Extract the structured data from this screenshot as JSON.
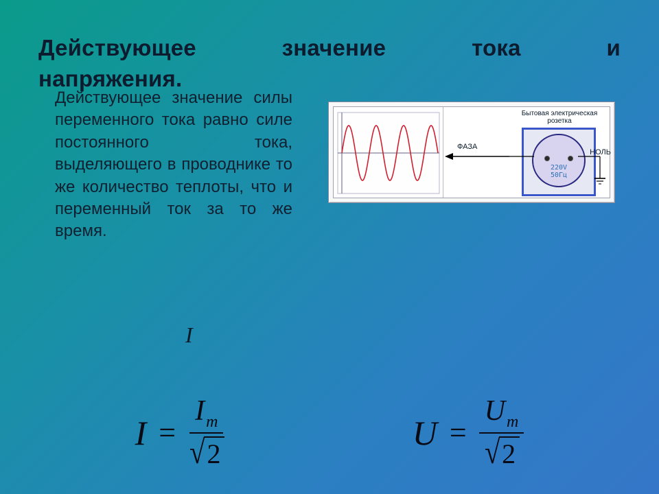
{
  "title_line1_words": [
    "Действующее",
    "значение",
    "тока",
    "и"
  ],
  "title_line2": "напряжения.",
  "definition": "Действующее значение силы переменного тока равно силе постоянного тока, выделяющего в проводнике то же количество теплоты, что и переменный ток за то же время.",
  "diagram": {
    "socket_title": "Бытовая электрическая\nрозетка",
    "phase_label": "ФАЗА",
    "neutral_label": "НОЛЬ",
    "socket_voltage": "220V",
    "socket_freq": "50Гц",
    "wave": {
      "amplitude": 40,
      "periods": 3.5,
      "color": "#d02030",
      "axis_color": "#606080",
      "width": 150,
      "height": 110
    },
    "arrow_color": "#000000",
    "socket_border_color": "#3a56c8",
    "socket_fill": "#e6e8f4",
    "circle_fill": "#d8d4ef",
    "circle_border": "#2a2a80",
    "bg": "#ffffff"
  },
  "formulas": {
    "I": {
      "var": "I",
      "num_var": "I",
      "num_sub": "m",
      "den_radicand": "2"
    },
    "U": {
      "var": "U",
      "num_var": "U",
      "num_sub": "m",
      "den_radicand": "2"
    },
    "stray_I": "I"
  },
  "colors": {
    "text": "#0a1a2a",
    "formula": "#0a0a14"
  }
}
